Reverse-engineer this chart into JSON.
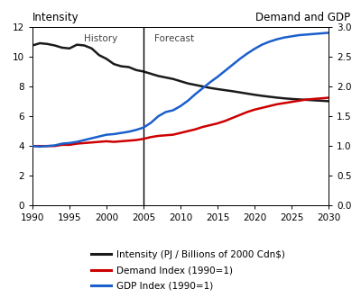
{
  "title_left": "Intensity",
  "title_right": "Demand and GDP",
  "xlim": [
    1990,
    2030
  ],
  "ylim_left": [
    0,
    12
  ],
  "ylim_right": [
    0.0,
    3.0
  ],
  "yticks_left": [
    0,
    2,
    4,
    6,
    8,
    10,
    12
  ],
  "yticks_right": [
    0.0,
    0.5,
    1.0,
    1.5,
    2.0,
    2.5,
    3.0
  ],
  "xticks": [
    1990,
    1995,
    2000,
    2005,
    2010,
    2015,
    2020,
    2025,
    2030
  ],
  "divider_x": 2005,
  "history_label": "History",
  "forecast_label": "Forecast",
  "intensity_color": "#1a1a1a",
  "demand_color": "#cc0000",
  "gdp_color": "#1a5fcc",
  "background_color": "#ffffff",
  "intensity_x": [
    1990,
    1991,
    1992,
    1993,
    1994,
    1995,
    1996,
    1997,
    1998,
    1999,
    2000,
    2001,
    2002,
    2003,
    2004,
    2005,
    2006,
    2007,
    2008,
    2009,
    2010,
    2011,
    2012,
    2013,
    2014,
    2015,
    2016,
    2017,
    2018,
    2019,
    2020,
    2021,
    2022,
    2023,
    2024,
    2025,
    2026,
    2027,
    2028,
    2029,
    2030
  ],
  "intensity_y": [
    10.75,
    10.9,
    10.85,
    10.75,
    10.6,
    10.55,
    10.8,
    10.75,
    10.55,
    10.1,
    9.85,
    9.5,
    9.35,
    9.3,
    9.1,
    9.0,
    8.85,
    8.7,
    8.6,
    8.5,
    8.35,
    8.2,
    8.1,
    8.0,
    7.9,
    7.82,
    7.75,
    7.68,
    7.6,
    7.52,
    7.44,
    7.37,
    7.31,
    7.25,
    7.2,
    7.16,
    7.13,
    7.1,
    7.07,
    7.04,
    7.01
  ],
  "demand_x": [
    1990,
    1991,
    1992,
    1993,
    1994,
    1995,
    1996,
    1997,
    1998,
    1999,
    2000,
    2001,
    2002,
    2003,
    2004,
    2005,
    2006,
    2007,
    2008,
    2009,
    2010,
    2011,
    2012,
    2013,
    2014,
    2015,
    2016,
    2017,
    2018,
    2019,
    2020,
    2021,
    2022,
    2023,
    2024,
    2025,
    2026,
    2027,
    2028,
    2029,
    2030
  ],
  "demand_y": [
    1.0,
    1.0,
    1.0,
    1.0,
    1.02,
    1.02,
    1.04,
    1.05,
    1.06,
    1.07,
    1.08,
    1.07,
    1.08,
    1.09,
    1.1,
    1.12,
    1.15,
    1.17,
    1.18,
    1.19,
    1.22,
    1.25,
    1.28,
    1.32,
    1.35,
    1.38,
    1.42,
    1.47,
    1.52,
    1.57,
    1.61,
    1.64,
    1.67,
    1.7,
    1.72,
    1.74,
    1.76,
    1.78,
    1.79,
    1.8,
    1.81
  ],
  "gdp_x": [
    1990,
    1991,
    1992,
    1993,
    1994,
    1995,
    1996,
    1997,
    1998,
    1999,
    2000,
    2001,
    2002,
    2003,
    2004,
    2005,
    2006,
    2007,
    2008,
    2009,
    2010,
    2011,
    2012,
    2013,
    2014,
    2015,
    2016,
    2017,
    2018,
    2019,
    2020,
    2021,
    2022,
    2023,
    2024,
    2025,
    2026,
    2027,
    2028,
    2029,
    2030
  ],
  "gdp_y": [
    1.0,
    0.99,
    1.0,
    1.01,
    1.04,
    1.05,
    1.07,
    1.1,
    1.13,
    1.16,
    1.19,
    1.2,
    1.22,
    1.24,
    1.27,
    1.31,
    1.39,
    1.5,
    1.57,
    1.6,
    1.67,
    1.76,
    1.87,
    1.97,
    2.07,
    2.16,
    2.26,
    2.36,
    2.46,
    2.55,
    2.63,
    2.7,
    2.75,
    2.79,
    2.82,
    2.84,
    2.86,
    2.87,
    2.88,
    2.89,
    2.9
  ],
  "legend_items": [
    {
      "label": "Intensity (PJ / Billions of 2000 Cdn$)",
      "color": "#1a1a1a"
    },
    {
      "label": "Demand Index (1990=1)",
      "color": "#cc0000"
    },
    {
      "label": "GDP Index (1990=1)",
      "color": "#1a5fcc"
    }
  ],
  "lw": 1.8
}
